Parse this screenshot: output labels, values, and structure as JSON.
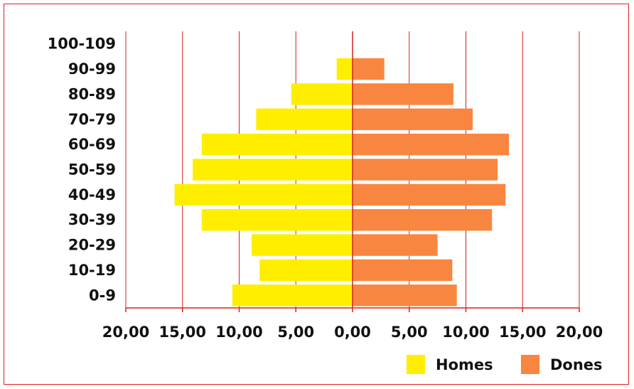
{
  "chart_data": {
    "type": "bar",
    "orientation": "horizontal",
    "variant": "population-pyramid",
    "categories": [
      "0-9",
      "10-19",
      "20-29",
      "30-39",
      "40-49",
      "50-59",
      "60-69",
      "70-79",
      "80-89",
      "90-99",
      "100-109"
    ],
    "series": [
      {
        "name": "Homes",
        "color": "#ffee00",
        "side": "left",
        "values": [
          10.6,
          8.2,
          8.9,
          13.3,
          15.7,
          14.1,
          13.3,
          8.5,
          5.4,
          1.4,
          0.0
        ]
      },
      {
        "name": "Dones",
        "color": "#f98640",
        "side": "right",
        "values": [
          9.2,
          8.8,
          7.5,
          12.3,
          13.5,
          12.8,
          13.8,
          10.6,
          8.9,
          2.8,
          0.0
        ]
      }
    ],
    "xlim": [
      -20,
      20
    ],
    "xticks": [
      -20,
      -15,
      -10,
      -5,
      0,
      5,
      10,
      15,
      20
    ],
    "xtick_labels": [
      "20,00",
      "15,00",
      "10,00",
      "5,00",
      "0,00",
      "5,00",
      "10,00",
      "15,00",
      "20,00"
    ],
    "title": "",
    "xlabel": "",
    "ylabel": "",
    "grid": "vertical",
    "legend_position": "bottom-right",
    "grid_color": "#d42020"
  }
}
